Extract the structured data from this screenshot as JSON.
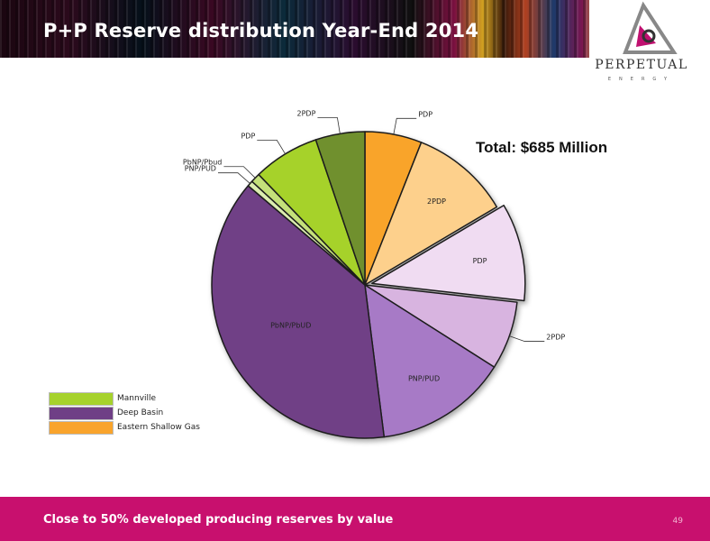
{
  "slide": {
    "title": "P+P Reserve distribution Year-End 2014",
    "total": "Total: $685 Million",
    "footer": "Close to 50% developed producing reserves by value",
    "page_number": "49"
  },
  "logo": {
    "name": "PERPETUAL",
    "sub": "ENERGY"
  },
  "colors": {
    "header_band": "#2b0a1c",
    "footer_band": "#c8106e",
    "slice_border": "#1f1f1f"
  },
  "chart_data": {
    "type": "pie",
    "title": "",
    "start_angle_deg": 0,
    "direction": "clockwise",
    "slices": [
      {
        "label": "PDP",
        "group": "Eastern Shallow Gas",
        "value": 6.0,
        "color": "#f9a42c"
      },
      {
        "label": "2PDP",
        "group": "Eastern Shallow Gas",
        "value": 10.5,
        "color": "#fdd08c"
      },
      {
        "label": "PDP",
        "group": "Deep Basin",
        "value": 10.3,
        "color": "#f0dcf2",
        "explode": true
      },
      {
        "label": "2PDP",
        "group": "Deep Basin",
        "value": 7.2,
        "color": "#d8b4e0"
      },
      {
        "label": "PNP/PUD",
        "group": "Deep Basin",
        "value": 14.0,
        "color": "#a77ac6"
      },
      {
        "label": "PbNP/PbUD",
        "group": "Deep Basin",
        "value": 38.2,
        "color": "#6f3f86"
      },
      {
        "label": "PNP/PUD",
        "group": "Mannville",
        "value": 0.6,
        "color": "#dcedb0"
      },
      {
        "label": "PbNP/Pbud",
        "group": "Mannville",
        "value": 1.0,
        "color": "#c4e07a"
      },
      {
        "label": "PDP",
        "group": "Mannville",
        "value": 7.0,
        "color": "#a6d22c"
      },
      {
        "label": "2PDP",
        "group": "Mannville",
        "value": 5.2,
        "color": "#6f902e"
      }
    ],
    "legend": [
      {
        "label": "Mannville",
        "color": "#a6d22c"
      },
      {
        "label": "Deep Basin",
        "color": "#6f3f86"
      },
      {
        "label": "Eastern Shallow Gas",
        "color": "#f9a42c"
      }
    ]
  }
}
